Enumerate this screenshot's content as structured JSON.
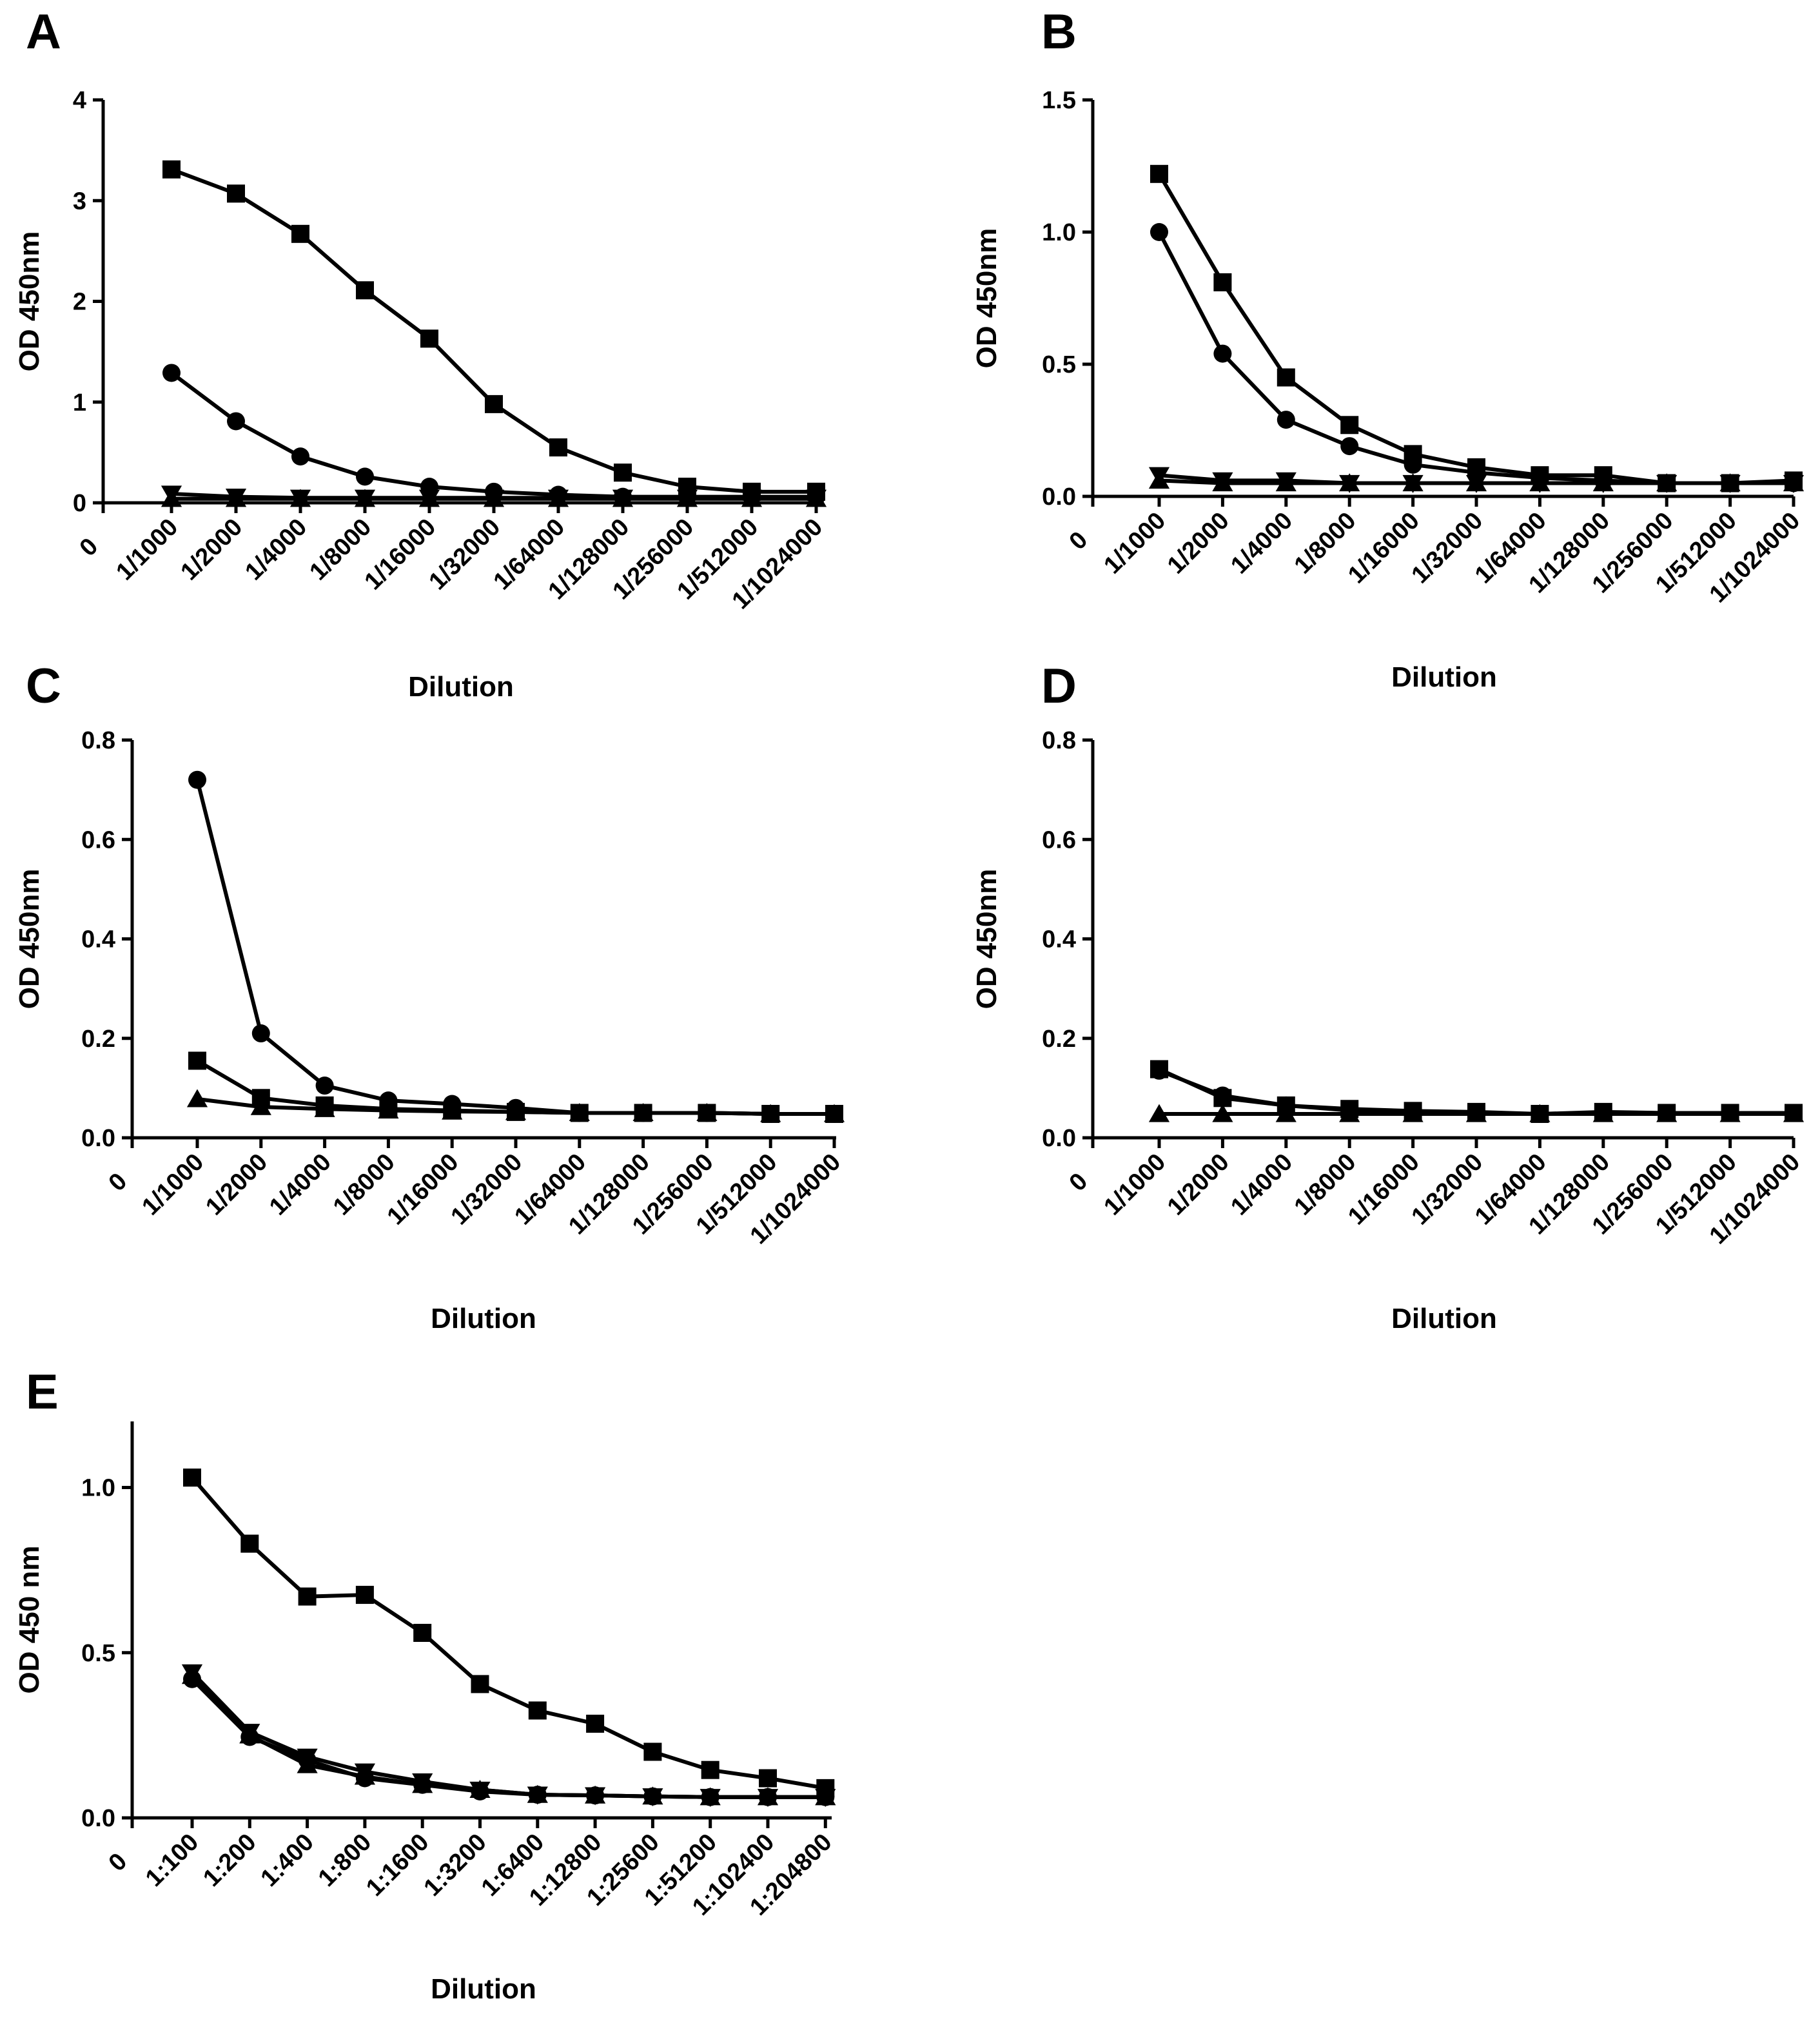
{
  "chart_data": [
    {
      "panel": "A",
      "type": "line",
      "xlabel": "Dilution",
      "ylabel": "OD 450nm",
      "ylim": [
        0,
        4
      ],
      "yticks": [
        "0",
        "1",
        "2",
        "3",
        "4"
      ],
      "xzero": "0",
      "categories": [
        "1/1000",
        "1/2000",
        "1/4000",
        "1/8000",
        "1/16000",
        "1/32000",
        "1/64000",
        "1/128000",
        "1/256000",
        "1/512000",
        "1/1024000"
      ],
      "series": [
        {
          "marker": "square",
          "values": [
            3.31,
            3.07,
            2.67,
            2.11,
            1.63,
            0.98,
            0.55,
            0.3,
            0.16,
            0.11,
            0.11
          ]
        },
        {
          "marker": "circle",
          "values": [
            1.29,
            0.81,
            0.46,
            0.26,
            0.16,
            0.11,
            0.08,
            0.06,
            0.06,
            0.06,
            0.06
          ]
        },
        {
          "marker": "triangle-down",
          "values": [
            0.09,
            0.06,
            0.05,
            0.05,
            0.05,
            0.05,
            0.05,
            0.05,
            0.05,
            0.05,
            0.05
          ]
        },
        {
          "marker": "triangle-up",
          "values": [
            0.04,
            0.04,
            0.04,
            0.04,
            0.04,
            0.04,
            0.04,
            0.04,
            0.04,
            0.04,
            0.04
          ]
        }
      ]
    },
    {
      "panel": "B",
      "type": "line",
      "xlabel": "Dilution",
      "ylabel": "OD 450nm",
      "ylim": [
        0,
        1.5
      ],
      "yticks": [
        "0.0",
        "0.5",
        "1.0",
        "1.5"
      ],
      "xzero": "0",
      "categories": [
        "1/1000",
        "1/2000",
        "1/4000",
        "1/8000",
        "1/16000",
        "1/32000",
        "1/64000",
        "1/128000",
        "1/256000",
        "1/512000",
        "1/1024000"
      ],
      "series": [
        {
          "marker": "square",
          "values": [
            1.22,
            0.81,
            0.45,
            0.27,
            0.16,
            0.11,
            0.08,
            0.08,
            0.05,
            0.05,
            0.06
          ]
        },
        {
          "marker": "circle",
          "values": [
            1.0,
            0.54,
            0.29,
            0.19,
            0.12,
            0.09,
            0.07,
            0.06,
            0.05,
            0.05,
            0.05
          ]
        },
        {
          "marker": "triangle-down",
          "values": [
            0.08,
            0.06,
            0.06,
            0.05,
            0.05,
            0.05,
            0.05,
            0.05,
            0.05,
            0.05,
            0.05
          ]
        },
        {
          "marker": "triangle-up",
          "values": [
            0.06,
            0.05,
            0.05,
            0.05,
            0.05,
            0.05,
            0.05,
            0.05,
            0.05,
            0.05,
            0.05
          ]
        }
      ]
    },
    {
      "panel": "C",
      "type": "line",
      "xlabel": "Dilution",
      "ylabel": "OD 450nm",
      "ylim": [
        0,
        0.8
      ],
      "yticks": [
        "0.0",
        "0.2",
        "0.4",
        "0.6",
        "0.8"
      ],
      "xzero": "0",
      "categories": [
        "1/1000",
        "1/2000",
        "1/4000",
        "1/8000",
        "1/16000",
        "1/32000",
        "1/64000",
        "1/128000",
        "1/256000",
        "1/512000",
        "1/1024000"
      ],
      "series": [
        {
          "marker": "circle",
          "values": [
            0.72,
            0.21,
            0.105,
            0.075,
            0.068,
            0.06,
            0.05,
            0.05,
            0.05,
            0.048,
            0.048
          ]
        },
        {
          "marker": "square",
          "values": [
            0.155,
            0.08,
            0.065,
            0.058,
            0.055,
            0.052,
            0.05,
            0.05,
            0.05,
            0.048,
            0.048
          ]
        },
        {
          "marker": "triangle-up",
          "values": [
            0.078,
            0.062,
            0.058,
            0.055,
            0.053,
            0.052,
            0.05,
            0.05,
            0.05,
            0.048,
            0.048
          ]
        }
      ]
    },
    {
      "panel": "D",
      "type": "line",
      "xlabel": "Dilution",
      "ylabel": "OD 450nm",
      "ylim": [
        0,
        0.8
      ],
      "yticks": [
        "0.0",
        "0.2",
        "0.4",
        "0.6",
        "0.8"
      ],
      "xzero": "0",
      "categories": [
        "1/1000",
        "1/2000",
        "1/4000",
        "1/8000",
        "1/16000",
        "1/32000",
        "1/64000",
        "1/128000",
        "1/256000",
        "1/512000",
        "1/1024000"
      ],
      "series": [
        {
          "marker": "square",
          "values": [
            0.138,
            0.08,
            0.065,
            0.058,
            0.054,
            0.052,
            0.048,
            0.052,
            0.05,
            0.05,
            0.05
          ]
        },
        {
          "marker": "circle",
          "values": [
            0.135,
            0.085,
            0.065,
            0.055,
            0.052,
            0.05,
            0.048,
            0.05,
            0.05,
            0.05,
            0.05
          ]
        },
        {
          "marker": "triangle-up",
          "values": [
            0.048,
            0.048,
            0.048,
            0.048,
            0.048,
            0.048,
            0.048,
            0.048,
            0.048,
            0.048,
            0.048
          ]
        }
      ]
    },
    {
      "panel": "E",
      "type": "line",
      "xlabel": "Dilution",
      "ylabel": "OD 450 nm",
      "ylim": [
        0,
        1.2
      ],
      "yticks": [
        "0.0",
        "0.5",
        "1.0"
      ],
      "xzero": "0",
      "categories": [
        "1:100",
        "1:200",
        "1:400",
        "1:800",
        "1:1600",
        "1:3200",
        "1:6400",
        "1:12800",
        "1:25600",
        "1:51200",
        "1:102400",
        "1:204800"
      ],
      "series": [
        {
          "marker": "square",
          "values": [
            1.03,
            0.83,
            0.67,
            0.675,
            0.56,
            0.405,
            0.325,
            0.285,
            0.2,
            0.145,
            0.12,
            0.09
          ]
        },
        {
          "marker": "triangle-down",
          "values": [
            0.44,
            0.26,
            0.185,
            0.14,
            0.11,
            0.085,
            0.07,
            0.068,
            0.065,
            0.063,
            0.063,
            0.063
          ]
        },
        {
          "marker": "triangle-up",
          "values": [
            0.43,
            0.25,
            0.16,
            0.125,
            0.1,
            0.085,
            0.07,
            0.068,
            0.065,
            0.063,
            0.063,
            0.063
          ]
        },
        {
          "marker": "circle",
          "values": [
            0.42,
            0.245,
            0.175,
            0.12,
            0.1,
            0.08,
            0.07,
            0.068,
            0.065,
            0.063,
            0.063,
            0.063
          ]
        }
      ]
    }
  ]
}
